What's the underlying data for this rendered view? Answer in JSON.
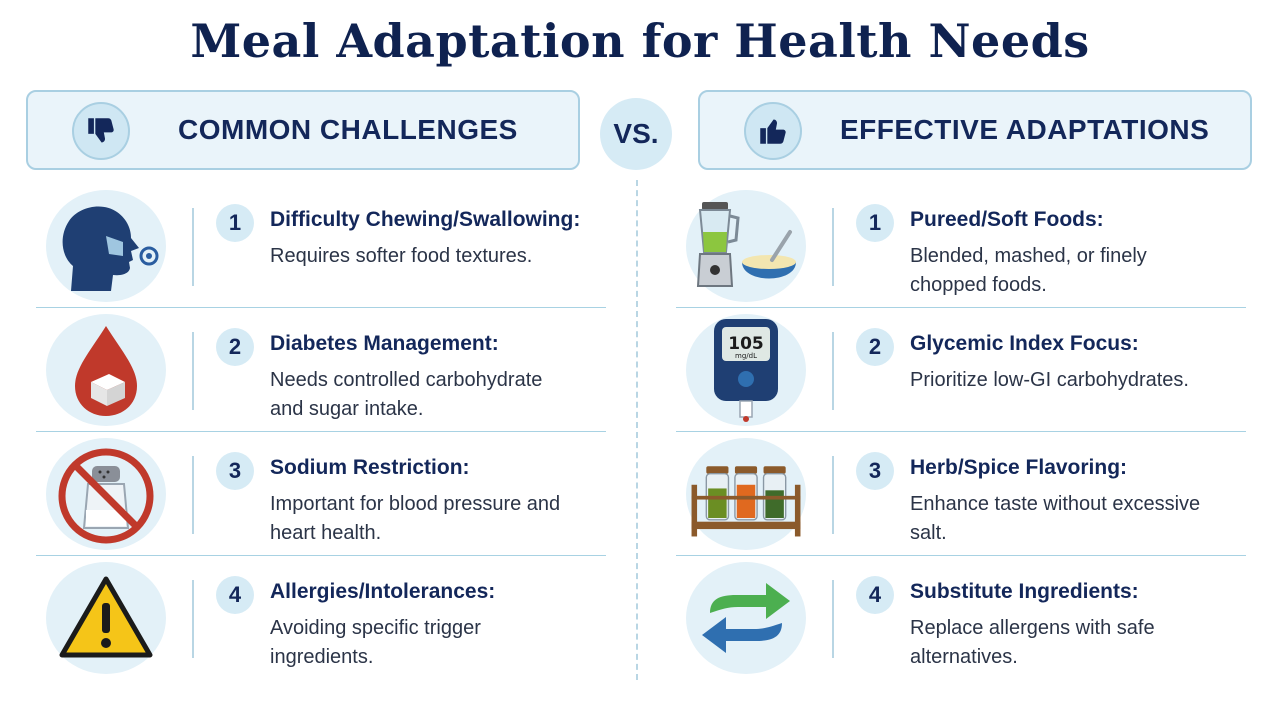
{
  "title": "Meal Adaptation for Health Needs",
  "vs_label": "VS.",
  "left": {
    "heading": "COMMON CHALLENGES",
    "heading_icon": "thumbs-down-icon",
    "items": [
      {
        "number": "1",
        "title": "Difficulty Chewing/Swallowing:",
        "desc": "Requires softer food textures.",
        "icon": "head-profile-icon"
      },
      {
        "number": "2",
        "title": "Diabetes Management:",
        "desc": "Needs controlled carbohydrate and sugar intake.",
        "icon": "blood-drop-sugar-icon"
      },
      {
        "number": "3",
        "title": "Sodium Restriction:",
        "desc": "Important for blood pressure and heart health.",
        "icon": "no-salt-icon"
      },
      {
        "number": "4",
        "title": "Allergies/Intolerances:",
        "desc": "Avoiding specific trigger ingredients.",
        "icon": "warning-icon"
      }
    ]
  },
  "right": {
    "heading": "EFFECTIVE ADAPTATIONS",
    "heading_icon": "thumbs-up-icon",
    "items": [
      {
        "number": "1",
        "title": "Pureed/Soft Foods:",
        "desc": "Blended, mashed, or finely chopped foods.",
        "icon": "blender-bowl-icon"
      },
      {
        "number": "2",
        "title": "Glycemic Index Focus:",
        "desc": "Prioritize low-GI carbohydrates.",
        "icon": "glucose-meter-icon",
        "meter_value": "105",
        "meter_unit": "mg/dL"
      },
      {
        "number": "3",
        "title": "Herb/Spice Flavoring:",
        "desc": "Enhance taste without excessive salt.",
        "icon": "spice-rack-icon"
      },
      {
        "number": "4",
        "title": "Substitute Ingredients:",
        "desc": "Replace allergens with safe alternatives.",
        "icon": "swap-arrows-icon"
      }
    ]
  },
  "colors": {
    "title": "#0f2250",
    "header_bg": "#eaf4fa",
    "accent_circle": "#d6ebf5",
    "drop_red": "#c0392b",
    "warning_yellow": "#f5c518",
    "arrow_green": "#4caf50",
    "arrow_blue": "#2f6fb0"
  }
}
